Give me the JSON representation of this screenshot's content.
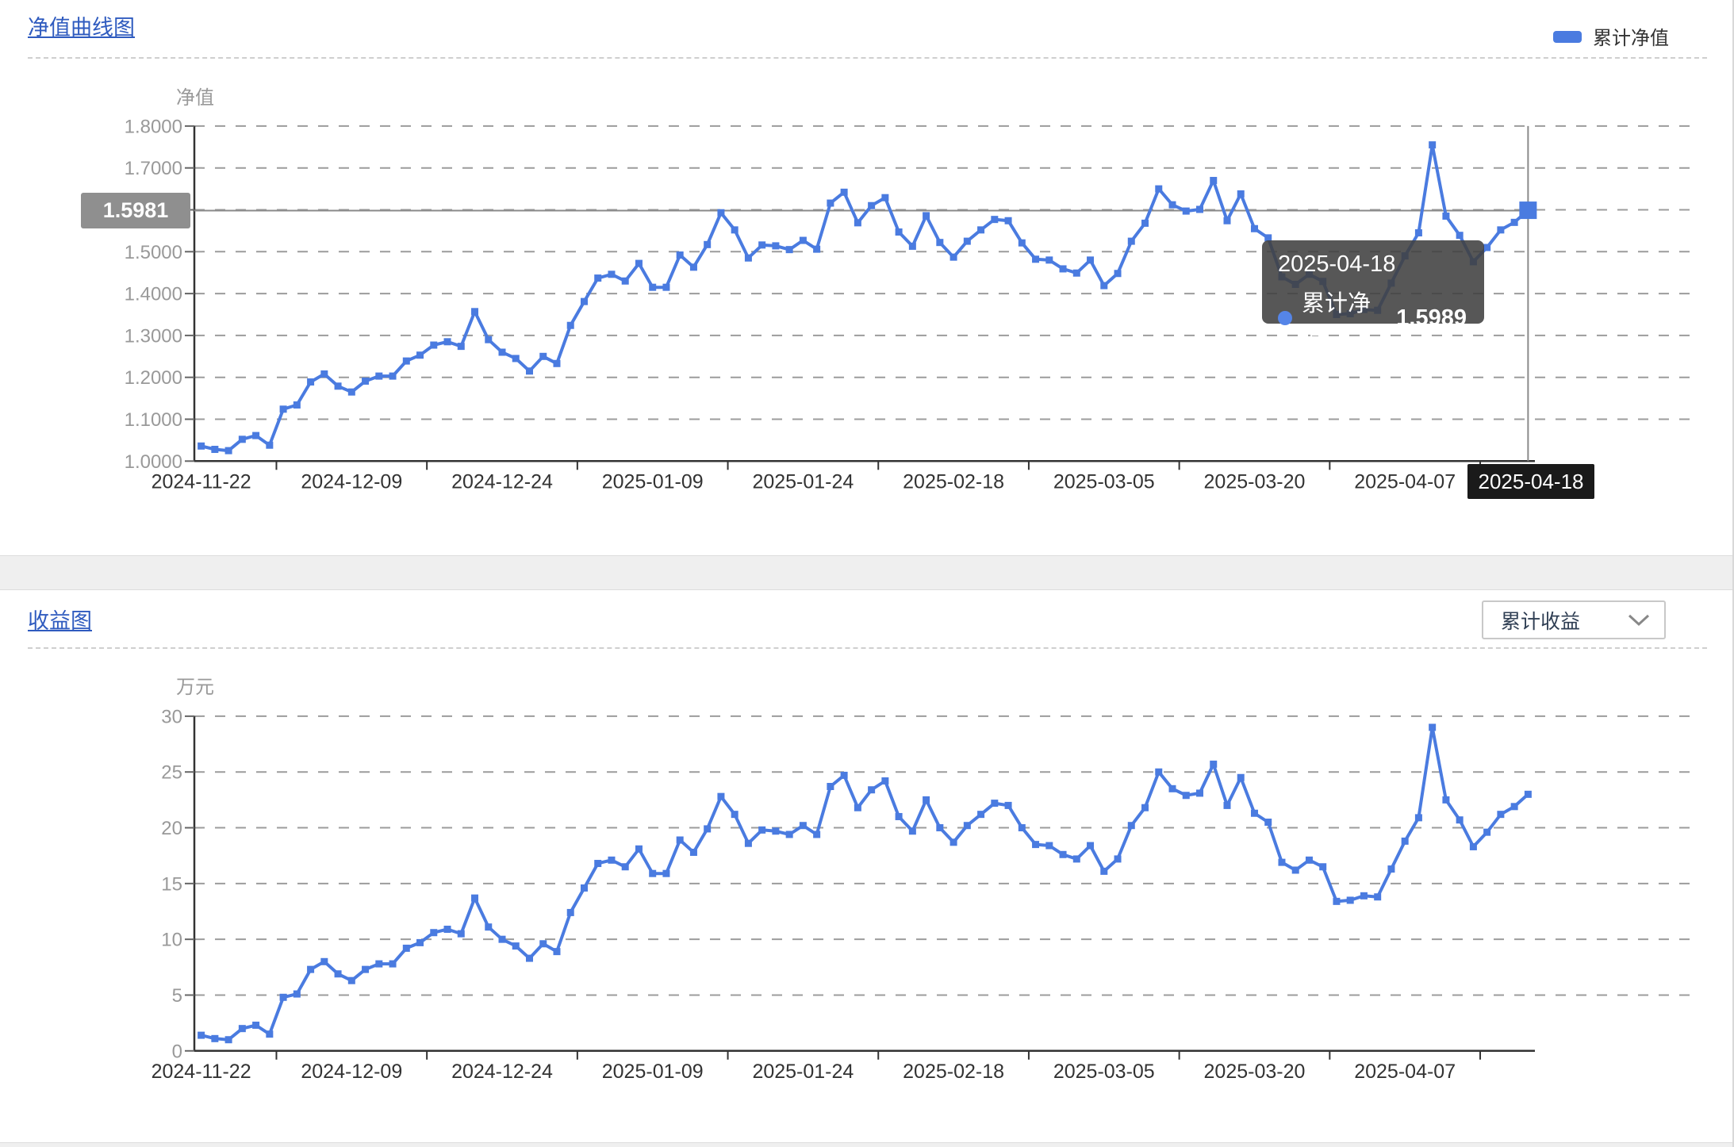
{
  "section1": {
    "title_link": "净值曲线图"
  },
  "section2": {
    "title_link": "收益图"
  },
  "legend": {
    "label": "累计净值"
  },
  "dropdown": {
    "value": "累计收益"
  },
  "tooltip": {
    "date": "2025-04-18",
    "series_label": "累计净值：",
    "value": "1.5989"
  },
  "axis_pointer": {
    "value_label": "1.5981",
    "date_label": "2025-04-18"
  },
  "colors": {
    "line_blue": "#4a7be0",
    "tooltip_dot_blue": "#5585e8",
    "title_link_blue": "#2f5bbf",
    "grid_line_gray": "#9c9c9c",
    "axis_line_dark": "#333333",
    "y_label_gray": "#999999",
    "x_label_dark": "#333333",
    "crosshair_gray": "#8a8a8a",
    "pointer_value_bg": "#8f8f8f",
    "pointer_date_bg": "#1a1a1a",
    "tooltip_bg": "rgba(64,64,64,0.88)"
  },
  "chart_data": [
    {
      "type": "line",
      "title": "净值曲线图",
      "series_name": "累计净值",
      "ylabel": "净值",
      "ylim": [
        1.0,
        1.8
      ],
      "ystep": 0.1,
      "grid": "dashed",
      "legend_position": "top-right",
      "yticks": [
        {
          "label": "1.8000",
          "v": 1.8
        },
        {
          "label": "1.7000",
          "v": 1.7
        },
        {
          "label": "1.5000",
          "v": 1.5
        },
        {
          "label": "1.4000",
          "v": 1.4
        },
        {
          "label": "1.3000",
          "v": 1.3
        },
        {
          "label": "1.2000",
          "v": 1.2
        },
        {
          "label": "1.1000",
          "v": 1.1
        },
        {
          "label": "1.0000",
          "v": 1.0
        }
      ],
      "x_ticks": [
        {
          "label": "2024-11-22",
          "index": 0
        },
        {
          "label": "2024-12-09",
          "index": 11
        },
        {
          "label": "2024-12-24",
          "index": 22
        },
        {
          "label": "2025-01-09",
          "index": 33
        },
        {
          "label": "2025-01-24",
          "index": 44
        },
        {
          "label": "2025-02-18",
          "index": 55
        },
        {
          "label": "2025-03-05",
          "index": 66
        },
        {
          "label": "2025-03-20",
          "index": 77
        },
        {
          "label": "2025-04-07",
          "index": 88
        }
      ],
      "x": [
        "2024-11-22",
        "2024-11-25",
        "2024-11-26",
        "2024-11-27",
        "2024-11-28",
        "2024-11-29",
        "2024-12-02",
        "2024-12-03",
        "2024-12-04",
        "2024-12-05",
        "2024-12-06",
        "2024-12-09",
        "2024-12-10",
        "2024-12-11",
        "2024-12-12",
        "2024-12-13",
        "2024-12-16",
        "2024-12-17",
        "2024-12-18",
        "2024-12-19",
        "2024-12-20",
        "2024-12-23",
        "2024-12-24",
        "2024-12-25",
        "2024-12-26",
        "2024-12-27",
        "2024-12-30",
        "2024-12-31",
        "2025-01-02",
        "2025-01-03",
        "2025-01-06",
        "2025-01-07",
        "2025-01-08",
        "2025-01-09",
        "2025-01-10",
        "2025-01-13",
        "2025-01-14",
        "2025-01-15",
        "2025-01-16",
        "2025-01-17",
        "2025-01-20",
        "2025-01-21",
        "2025-01-22",
        "2025-01-23",
        "2025-01-24",
        "2025-01-27",
        "2025-02-05",
        "2025-02-06",
        "2025-02-07",
        "2025-02-10",
        "2025-02-11",
        "2025-02-12",
        "2025-02-13",
        "2025-02-14",
        "2025-02-17",
        "2025-02-18",
        "2025-02-19",
        "2025-02-20",
        "2025-02-21",
        "2025-02-24",
        "2025-02-25",
        "2025-02-26",
        "2025-02-27",
        "2025-02-28",
        "2025-03-03",
        "2025-03-04",
        "2025-03-05",
        "2025-03-06",
        "2025-03-07",
        "2025-03-10",
        "2025-03-11",
        "2025-03-12",
        "2025-03-13",
        "2025-03-14",
        "2025-03-17",
        "2025-03-18",
        "2025-03-19",
        "2025-03-20",
        "2025-03-21",
        "2025-03-24",
        "2025-03-25",
        "2025-03-26",
        "2025-03-27",
        "2025-03-28",
        "2025-03-31",
        "2025-04-01",
        "2025-04-02",
        "2025-04-03",
        "2025-04-07",
        "2025-04-08",
        "2025-04-09",
        "2025-04-10",
        "2025-04-11",
        "2025-04-14",
        "2025-04-15",
        "2025-04-16",
        "2025-04-17",
        "2025-04-18"
      ],
      "values": [
        1.036,
        1.028,
        1.025,
        1.052,
        1.061,
        1.038,
        1.124,
        1.134,
        1.189,
        1.208,
        1.179,
        1.165,
        1.191,
        1.203,
        1.203,
        1.239,
        1.253,
        1.277,
        1.285,
        1.274,
        1.357,
        1.29,
        1.26,
        1.245,
        1.215,
        1.25,
        1.233,
        1.324,
        1.381,
        1.437,
        1.446,
        1.43,
        1.472,
        1.415,
        1.415,
        1.492,
        1.463,
        1.517,
        1.593,
        1.552,
        1.485,
        1.516,
        1.514,
        1.505,
        1.527,
        1.506,
        1.616,
        1.642,
        1.569,
        1.61,
        1.629,
        1.547,
        1.513,
        1.586,
        1.522,
        1.487,
        1.525,
        1.552,
        1.577,
        1.574,
        1.521,
        1.482,
        1.48,
        1.459,
        1.449,
        1.48,
        1.419,
        1.448,
        1.525,
        1.568,
        1.65,
        1.612,
        1.597,
        1.601,
        1.67,
        1.574,
        1.638,
        1.555,
        1.533,
        1.44,
        1.422,
        1.446,
        1.429,
        1.35,
        1.352,
        1.362,
        1.36,
        1.425,
        1.49,
        1.545,
        1.755,
        1.585,
        1.539,
        1.476,
        1.51,
        1.552,
        1.57,
        1.5989
      ],
      "highlight": {
        "date": "2025-04-18",
        "value": 1.5989,
        "axis_pointer_y": 1.5981
      }
    },
    {
      "type": "line",
      "title": "收益图",
      "series_name": "累计收益",
      "ylabel": "万元",
      "ylim": [
        0,
        30
      ],
      "ystep": 5,
      "grid": "dashed",
      "yticks": [
        {
          "label": "30",
          "v": 30
        },
        {
          "label": "25",
          "v": 25
        },
        {
          "label": "20",
          "v": 20
        },
        {
          "label": "15",
          "v": 15
        },
        {
          "label": "10",
          "v": 10
        },
        {
          "label": "5",
          "v": 5
        },
        {
          "label": "0",
          "v": 0
        }
      ],
      "x_ticks": [
        {
          "label": "2024-11-22",
          "index": 0
        },
        {
          "label": "2024-12-09",
          "index": 11
        },
        {
          "label": "2024-12-24",
          "index": 22
        },
        {
          "label": "2025-01-09",
          "index": 33
        },
        {
          "label": "2025-01-24",
          "index": 44
        },
        {
          "label": "2025-02-18",
          "index": 55
        },
        {
          "label": "2025-03-05",
          "index": 66
        },
        {
          "label": "2025-03-20",
          "index": 77
        },
        {
          "label": "2025-04-07",
          "index": 88
        }
      ],
      "x": [
        "2024-11-22",
        "2024-11-25",
        "2024-11-26",
        "2024-11-27",
        "2024-11-28",
        "2024-11-29",
        "2024-12-02",
        "2024-12-03",
        "2024-12-04",
        "2024-12-05",
        "2024-12-06",
        "2024-12-09",
        "2024-12-10",
        "2024-12-11",
        "2024-12-12",
        "2024-12-13",
        "2024-12-16",
        "2024-12-17",
        "2024-12-18",
        "2024-12-19",
        "2024-12-20",
        "2024-12-23",
        "2024-12-24",
        "2024-12-25",
        "2024-12-26",
        "2024-12-27",
        "2024-12-30",
        "2024-12-31",
        "2025-01-02",
        "2025-01-03",
        "2025-01-06",
        "2025-01-07",
        "2025-01-08",
        "2025-01-09",
        "2025-01-10",
        "2025-01-13",
        "2025-01-14",
        "2025-01-15",
        "2025-01-16",
        "2025-01-17",
        "2025-01-20",
        "2025-01-21",
        "2025-01-22",
        "2025-01-23",
        "2025-01-24",
        "2025-01-27",
        "2025-02-05",
        "2025-02-06",
        "2025-02-07",
        "2025-02-10",
        "2025-02-11",
        "2025-02-12",
        "2025-02-13",
        "2025-02-14",
        "2025-02-17",
        "2025-02-18",
        "2025-02-19",
        "2025-02-20",
        "2025-02-21",
        "2025-02-24",
        "2025-02-25",
        "2025-02-26",
        "2025-02-27",
        "2025-02-28",
        "2025-03-03",
        "2025-03-04",
        "2025-03-05",
        "2025-03-06",
        "2025-03-07",
        "2025-03-10",
        "2025-03-11",
        "2025-03-12",
        "2025-03-13",
        "2025-03-14",
        "2025-03-17",
        "2025-03-18",
        "2025-03-19",
        "2025-03-20",
        "2025-03-21",
        "2025-03-24",
        "2025-03-25",
        "2025-03-26",
        "2025-03-27",
        "2025-03-28",
        "2025-03-31",
        "2025-04-01",
        "2025-04-02",
        "2025-04-03",
        "2025-04-07",
        "2025-04-08",
        "2025-04-09",
        "2025-04-10",
        "2025-04-11",
        "2025-04-14",
        "2025-04-15",
        "2025-04-16",
        "2025-04-17",
        "2025-04-18"
      ],
      "values": [
        1.4,
        1.1,
        1.0,
        2.0,
        2.3,
        1.5,
        4.8,
        5.1,
        7.3,
        8.0,
        6.9,
        6.3,
        7.3,
        7.8,
        7.8,
        9.2,
        9.7,
        10.6,
        10.9,
        10.5,
        13.7,
        11.1,
        10.0,
        9.4,
        8.3,
        9.6,
        8.9,
        12.4,
        14.6,
        16.8,
        17.1,
        16.5,
        18.1,
        15.9,
        15.9,
        18.9,
        17.8,
        19.9,
        22.8,
        21.2,
        18.6,
        19.8,
        19.7,
        19.4,
        20.2,
        19.4,
        23.7,
        24.7,
        21.8,
        23.4,
        24.2,
        21.0,
        19.7,
        22.5,
        20.0,
        18.7,
        20.2,
        21.2,
        22.2,
        22.0,
        20.0,
        18.5,
        18.4,
        17.6,
        17.2,
        18.4,
        16.1,
        17.2,
        20.2,
        21.8,
        25.0,
        23.5,
        22.9,
        23.1,
        25.7,
        22.0,
        24.5,
        21.3,
        20.5,
        16.9,
        16.2,
        17.1,
        16.5,
        13.4,
        13.5,
        13.9,
        13.8,
        16.3,
        18.8,
        20.9,
        29.0,
        22.5,
        20.7,
        18.3,
        19.6,
        21.2,
        21.9,
        23.0
      ]
    }
  ]
}
